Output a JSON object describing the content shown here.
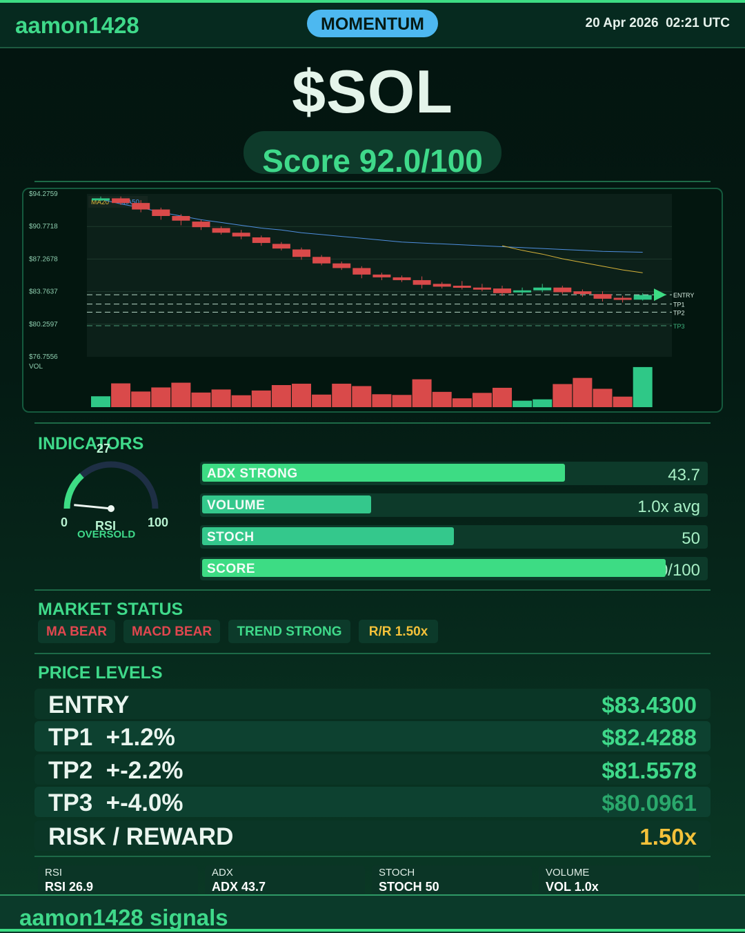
{
  "header": {
    "brand": "aamon1428",
    "mode": "MOMENTUM",
    "datetime": "20 Apr 2026  02:21 UTC"
  },
  "asset": {
    "ticker": "$SOL",
    "score_text": "Score 92.0/100"
  },
  "chart_data": {
    "type": "candlestick",
    "y_tick_labels": [
      "$94.2759",
      "$90.7718",
      "$87.2678",
      "$83.7637",
      "$80.2597",
      "$76.7556"
    ],
    "ylim": [
      76.7556,
      94.2759
    ],
    "legend": [
      "MA20",
      "MA50"
    ],
    "volume_label": "VOL",
    "candles": [
      {
        "o": 93.8,
        "c": 93.8,
        "h": 94.0,
        "l": 93.5
      },
      {
        "o": 93.8,
        "c": 93.3,
        "h": 94.0,
        "l": 93.1
      },
      {
        "o": 93.3,
        "c": 92.6,
        "h": 93.6,
        "l": 92.3
      },
      {
        "o": 92.6,
        "c": 91.9,
        "h": 92.8,
        "l": 91.5
      },
      {
        "o": 91.9,
        "c": 91.4,
        "h": 92.1,
        "l": 90.9
      },
      {
        "o": 91.3,
        "c": 90.7,
        "h": 91.5,
        "l": 90.4
      },
      {
        "o": 90.6,
        "c": 90.1,
        "h": 90.8,
        "l": 89.9
      },
      {
        "o": 90.1,
        "c": 89.7,
        "h": 90.4,
        "l": 89.4
      },
      {
        "o": 89.6,
        "c": 89.0,
        "h": 89.8,
        "l": 88.7
      },
      {
        "o": 88.9,
        "c": 88.4,
        "h": 89.1,
        "l": 88.2
      },
      {
        "o": 88.3,
        "c": 87.5,
        "h": 88.5,
        "l": 87.2
      },
      {
        "o": 87.5,
        "c": 86.8,
        "h": 87.7,
        "l": 86.6
      },
      {
        "o": 86.8,
        "c": 86.3,
        "h": 87.0,
        "l": 86.1
      },
      {
        "o": 86.3,
        "c": 85.6,
        "h": 86.5,
        "l": 85.2
      },
      {
        "o": 85.6,
        "c": 85.3,
        "h": 85.8,
        "l": 85.0
      },
      {
        "o": 85.3,
        "c": 85.0,
        "h": 85.5,
        "l": 84.8
      },
      {
        "o": 85.0,
        "c": 84.5,
        "h": 85.4,
        "l": 84.1
      },
      {
        "o": 84.6,
        "c": 84.3,
        "h": 84.8,
        "l": 84.1
      },
      {
        "o": 84.4,
        "c": 84.2,
        "h": 84.9,
        "l": 84.0
      },
      {
        "o": 84.2,
        "c": 84.0,
        "h": 84.6,
        "l": 83.8
      },
      {
        "o": 84.1,
        "c": 83.6,
        "h": 84.4,
        "l": 83.3
      },
      {
        "o": 83.7,
        "c": 83.9,
        "h": 84.2,
        "l": 83.4
      },
      {
        "o": 83.9,
        "c": 84.2,
        "h": 84.6,
        "l": 83.7
      },
      {
        "o": 84.2,
        "c": 83.7,
        "h": 84.4,
        "l": 83.5
      },
      {
        "o": 83.8,
        "c": 83.5,
        "h": 84.0,
        "l": 83.2
      },
      {
        "o": 83.5,
        "c": 83.0,
        "h": 83.8,
        "l": 82.7
      },
      {
        "o": 83.1,
        "c": 82.9,
        "h": 83.3,
        "l": 82.6
      },
      {
        "o": 82.9,
        "c": 83.4,
        "h": 83.6,
        "l": 82.8
      }
    ],
    "volume": [
      32,
      70,
      46,
      58,
      72,
      43,
      52,
      35,
      49,
      65,
      69,
      37,
      69,
      62,
      38,
      36,
      82,
      45,
      26,
      42,
      57,
      19,
      23,
      68,
      86,
      54,
      31,
      118
    ],
    "ma20": [
      null,
      null,
      null,
      null,
      null,
      null,
      null,
      null,
      null,
      null,
      null,
      null,
      null,
      null,
      null,
      null,
      null,
      null,
      null,
      null,
      88.7,
      88.2,
      87.8,
      87.3,
      86.9,
      86.5,
      86.1,
      85.8
    ],
    "ma50": [
      93.7,
      93.2,
      92.8,
      92.3,
      91.9,
      91.5,
      91.2,
      90.9,
      90.6,
      90.4,
      90.1,
      89.9,
      89.7,
      89.5,
      89.3,
      89.1,
      89.0,
      88.9,
      88.8,
      88.7,
      88.6,
      88.5,
      88.4,
      88.3,
      88.2,
      88.1,
      88.05,
      88.0
    ],
    "levels": [
      {
        "name": "ENTRY",
        "value": 83.43
      },
      {
        "name": "TP1",
        "value": 82.4288
      },
      {
        "name": "TP2",
        "value": 81.5578
      },
      {
        "name": "TP3",
        "value": 80.0961
      }
    ],
    "colors": {
      "up": "#2fc887",
      "down": "#d94a4a",
      "ma20": "#d9b43a",
      "ma50": "#4f8fe0",
      "entry_arrow": "#3ddc84"
    }
  },
  "indicators": {
    "title": "INDICATORS",
    "rsi": {
      "value": 27,
      "value_text": "27",
      "min_label": "0",
      "max_label": "100",
      "name": "RSI",
      "status": "OVERSOLD"
    },
    "bars": [
      {
        "label": "ADX  STRONG",
        "value_text": "43.7",
        "fill": 0.72,
        "color": "#3ddc84"
      },
      {
        "label": "VOLUME",
        "value_text": "1.0x avg",
        "fill": 0.335,
        "color": "#34c88c"
      },
      {
        "label": "STOCH",
        "value_text": "50",
        "fill": 0.5,
        "color": "#34c88c"
      },
      {
        "label": "SCORE",
        "value_text": "92.0/100",
        "fill": 0.92,
        "color": "#3ddc84"
      }
    ]
  },
  "market_status": {
    "title": "MARKET STATUS",
    "chips": [
      {
        "text": "MA BEAR",
        "color": "#e0474f"
      },
      {
        "text": "MACD BEAR",
        "color": "#e0474f"
      },
      {
        "text": "TREND STRONG",
        "color": "#3fd98a"
      },
      {
        "text": "R/R  1.50x",
        "color": "#f3c13a"
      }
    ]
  },
  "price_levels": {
    "title": "PRICE LEVELS",
    "rows": [
      {
        "name": "ENTRY",
        "value": "$83.4300",
        "color": "#3fd98a"
      },
      {
        "name": "TP1  +1.2%",
        "value": "$82.4288",
        "color": "#3fd98a"
      },
      {
        "name": "TP2  +-2.2%",
        "value": "$81.5578",
        "color": "#3fd98a"
      },
      {
        "name": "TP3  +-4.0%",
        "value": "$80.0961",
        "color": "#2aa86c"
      },
      {
        "name": "RISK / REWARD",
        "value": "1.50x",
        "color": "#f3c13a"
      }
    ]
  },
  "stats": [
    {
      "title": "RSI",
      "value": "RSI 26.9"
    },
    {
      "title": "ADX",
      "value": "ADX 43.7"
    },
    {
      "title": "STOCH",
      "value": "STOCH 50"
    },
    {
      "title": "VOLUME",
      "value": "VOL 1.0x"
    }
  ],
  "footer": {
    "brand": "aamon1428 signals"
  }
}
